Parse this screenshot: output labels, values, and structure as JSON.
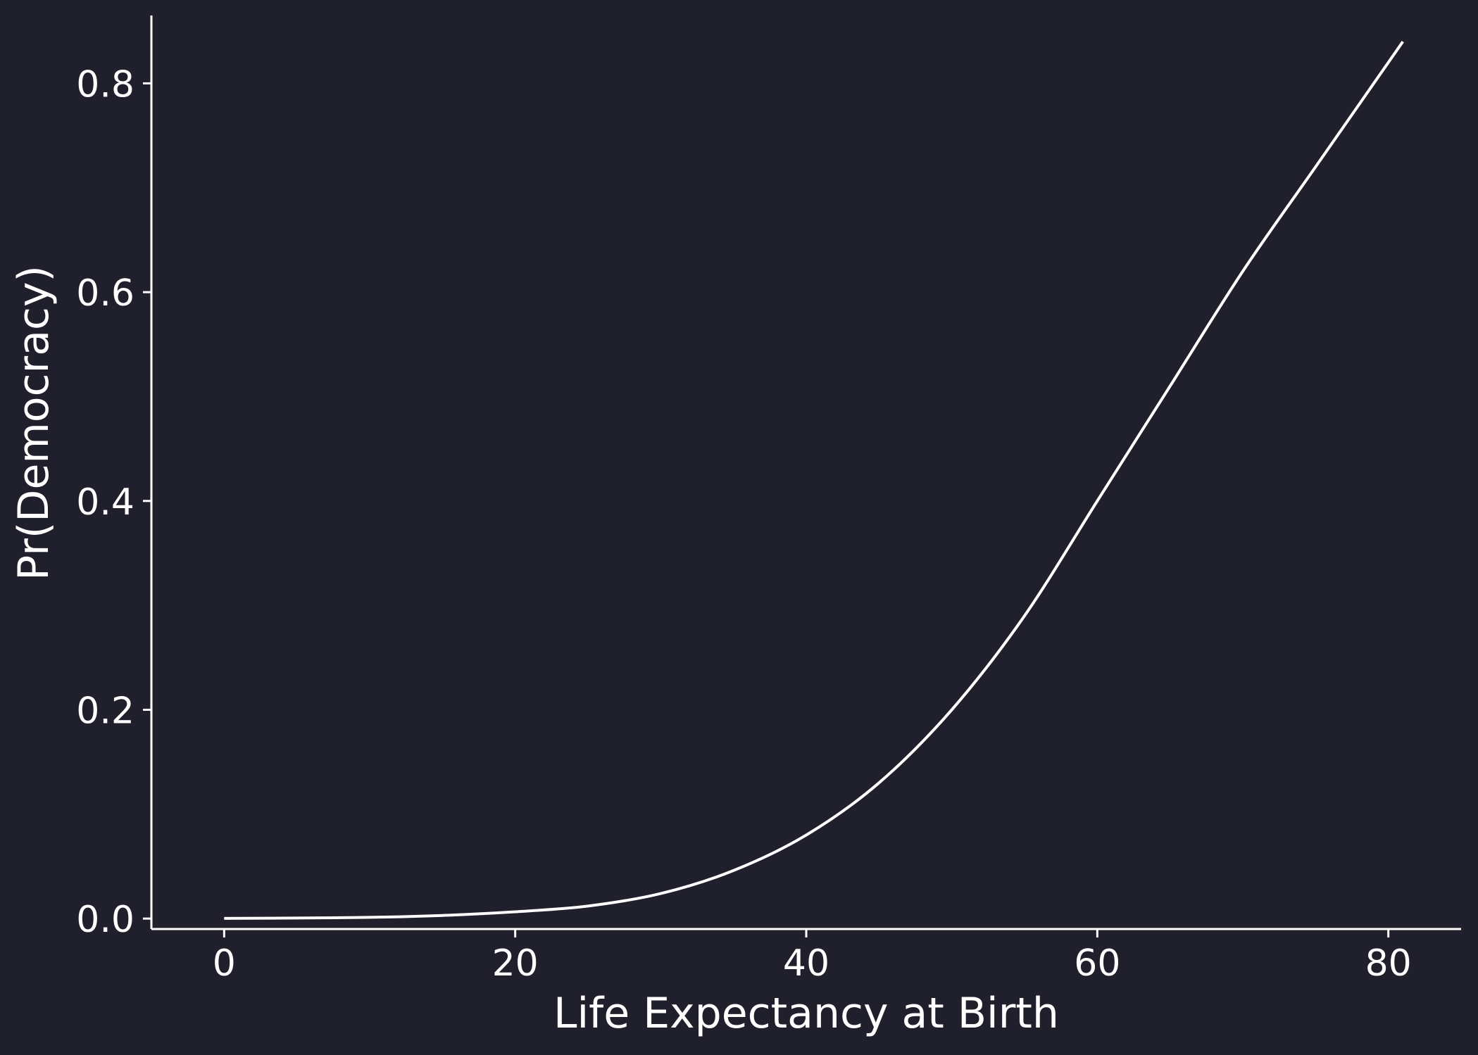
{
  "chart_data": {
    "type": "line",
    "title": "",
    "xlabel": "Life Expectancy at Birth",
    "ylabel": "Pr(Democracy)",
    "xlim": [
      -5,
      85
    ],
    "ylim": [
      -0.01,
      0.865
    ],
    "xticks": [
      0,
      20,
      40,
      60,
      80
    ],
    "xtick_labels": [
      "0",
      "20",
      "40",
      "60",
      "80"
    ],
    "yticks": [
      0.0,
      0.2,
      0.4,
      0.6,
      0.8
    ],
    "ytick_labels": [
      "0.0",
      "0.2",
      "0.4",
      "0.6",
      "0.8"
    ],
    "grid": false,
    "line_color": "#ffffff",
    "background_color": "#1f202c",
    "series": [
      {
        "x": [
          0,
          5,
          10,
          15,
          20,
          25,
          30,
          35,
          40,
          45,
          50,
          55,
          60,
          65,
          70,
          75,
          81
        ],
        "y": [
          0.0002,
          0.0005,
          0.0012,
          0.003,
          0.0065,
          0.012,
          0.024,
          0.046,
          0.08,
          0.13,
          0.2,
          0.29,
          0.4,
          0.51,
          0.62,
          0.72,
          0.84
        ]
      }
    ]
  }
}
